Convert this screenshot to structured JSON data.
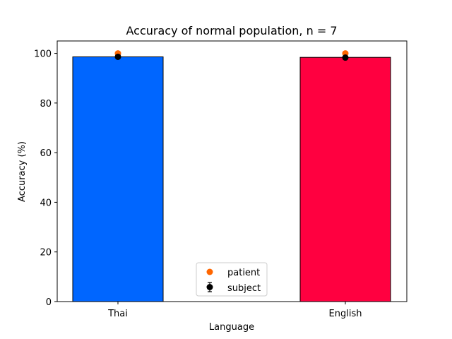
{
  "chart_data": {
    "type": "bar",
    "title": "Accuracy of normal population, n = 7",
    "xlabel": "Language",
    "ylabel": "Accuracy (%)",
    "ylim": [
      0,
      105
    ],
    "yticks": [
      0,
      20,
      40,
      60,
      80,
      100
    ],
    "categories": [
      "Thai",
      "English"
    ],
    "values": [
      98.6,
      98.4
    ],
    "bar_colors": [
      "#0066ff",
      "#ff0040"
    ],
    "series": [
      {
        "name": "patient",
        "marker": "circle",
        "color": "#ff6600",
        "values": [
          100,
          100
        ]
      },
      {
        "name": "subject",
        "marker": "circle-errorbar",
        "color": "#000000",
        "values": [
          98.6,
          98.3
        ],
        "error": [
          0.5,
          0.5
        ]
      }
    ],
    "legend_position": "lower-center",
    "grid": false
  }
}
